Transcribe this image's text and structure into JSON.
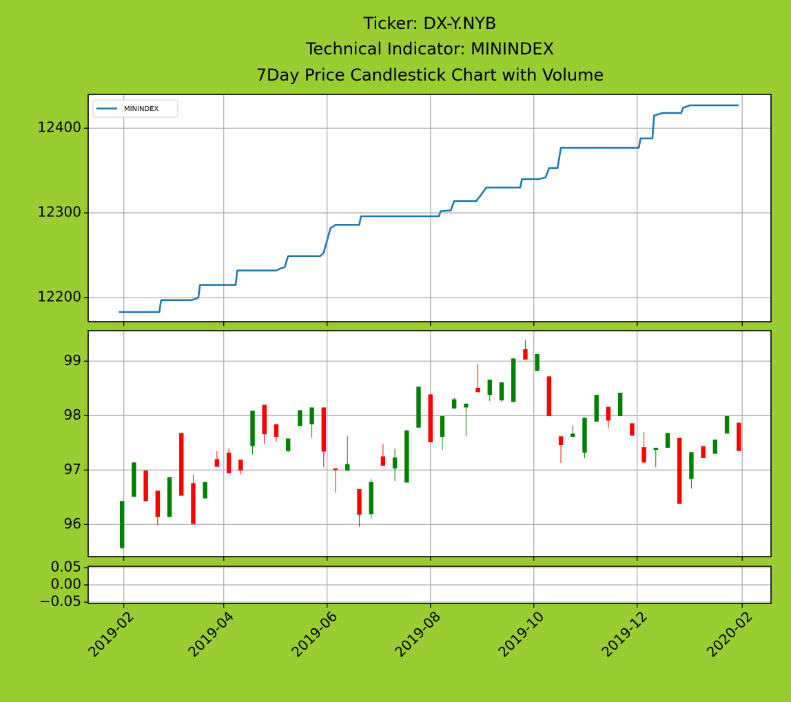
{
  "chart_data": [
    {
      "type": "line",
      "title": [
        "Ticker: DX-Y.NYB",
        "Technical Indicator: MININDEX",
        "7Day Price Candlestick Chart with Volume"
      ],
      "x": [
        "2019-01-29",
        "2019-02-22",
        "2019-02-23",
        "2019-03-13",
        "2019-03-16",
        "2019-03-17",
        "2019-03-18",
        "2019-04-08",
        "2019-04-09",
        "2019-05-02",
        "2019-05-04",
        "2019-05-07",
        "2019-05-09",
        "2019-05-28",
        "2019-05-30",
        "2019-06-03",
        "2019-06-06",
        "2019-06-20",
        "2019-06-21",
        "2019-08-06",
        "2019-08-07",
        "2019-08-13",
        "2019-08-15",
        "2019-08-28",
        "2019-08-30",
        "2019-09-03",
        "2019-09-23",
        "2019-09-24",
        "2019-10-04",
        "2019-10-08",
        "2019-10-10",
        "2019-10-15",
        "2019-10-17",
        "2019-12-02",
        "2019-12-03",
        "2019-12-10",
        "2019-12-11",
        "2019-12-16",
        "2019-12-27",
        "2019-12-28",
        "2020-01-01",
        "2020-01-30"
      ],
      "series": [
        {
          "name": "MININDEX",
          "color": "#1f77b4",
          "values": [
            12183,
            12183,
            12197,
            12197,
            12199,
            12200,
            12215,
            12215,
            12232,
            12232,
            12234,
            12236,
            12249,
            12249,
            12253,
            12282,
            12286,
            12286,
            12296,
            12296,
            12302,
            12303,
            12314,
            12314,
            12319,
            12330,
            12330,
            12340,
            12340,
            12342,
            12353,
            12353,
            12377,
            12377,
            12388,
            12388,
            12415,
            12418,
            12418,
            12424,
            12427,
            12427
          ]
        }
      ],
      "legend": "upper left",
      "xlim": [
        "2019-01-11",
        "2020-02-18"
      ],
      "xticks": [
        "2019-02",
        "2019-04",
        "2019-06",
        "2019-08",
        "2019-10",
        "2019-12",
        "2020-02"
      ],
      "ylim": [
        12171.5,
        12440
      ],
      "yticks": [
        12200,
        12300,
        12400
      ],
      "grid": true
    },
    {
      "type": "candlestick",
      "x": [
        "2019-01-31",
        "2019-02-07",
        "2019-02-14",
        "2019-02-21",
        "2019-02-28",
        "2019-03-07",
        "2019-03-14",
        "2019-03-21",
        "2019-03-28",
        "2019-04-04",
        "2019-04-11",
        "2019-04-18",
        "2019-04-25",
        "2019-05-02",
        "2019-05-09",
        "2019-05-16",
        "2019-05-23",
        "2019-05-30",
        "2019-06-06",
        "2019-06-13",
        "2019-06-20",
        "2019-06-27",
        "2019-07-04",
        "2019-07-11",
        "2019-07-18",
        "2019-07-25",
        "2019-08-01",
        "2019-08-08",
        "2019-08-15",
        "2019-08-22",
        "2019-08-29",
        "2019-09-05",
        "2019-09-12",
        "2019-09-19",
        "2019-09-26",
        "2019-10-03",
        "2019-10-10",
        "2019-10-17",
        "2019-10-24",
        "2019-10-31",
        "2019-11-07",
        "2019-11-14",
        "2019-11-21",
        "2019-11-28",
        "2019-12-05",
        "2019-12-12",
        "2019-12-19",
        "2019-12-26",
        "2020-01-02",
        "2020-01-09",
        "2020-01-16",
        "2020-01-23",
        "2020-01-30"
      ],
      "open": [
        95.57,
        96.51,
        96.99,
        96.62,
        96.14,
        97.68,
        96.76,
        96.48,
        97.2,
        97.32,
        97.19,
        97.44,
        98.2,
        97.84,
        97.35,
        97.81,
        97.84,
        98.15,
        97.03,
        96.99,
        96.65,
        96.19,
        97.25,
        97.03,
        96.77,
        97.78,
        98.39,
        97.61,
        98.13,
        98.15,
        98.51,
        98.38,
        98.28,
        98.25,
        99.22,
        98.82,
        98.72,
        97.62,
        97.61,
        97.32,
        97.89,
        98.16,
        97.99,
        97.86,
        97.42,
        97.37,
        97.41,
        97.59,
        96.84,
        97.44,
        97.3,
        97.67,
        97.87
      ],
      "high": [
        96.43,
        97.14,
        97.0,
        96.62,
        96.87,
        97.68,
        96.91,
        96.78,
        97.35,
        97.4,
        97.19,
        98.09,
        98.2,
        97.84,
        97.58,
        98.1,
        98.15,
        98.15,
        97.03,
        97.63,
        96.65,
        96.84,
        97.48,
        97.39,
        97.73,
        98.53,
        98.39,
        97.99,
        98.33,
        98.22,
        98.95,
        98.66,
        98.61,
        99.05,
        99.38,
        99.13,
        98.72,
        97.62,
        97.82,
        97.96,
        98.38,
        98.16,
        98.42,
        97.86,
        97.7,
        97.41,
        97.68,
        97.59,
        97.33,
        97.44,
        97.56,
        97.99,
        97.87
      ],
      "low": [
        95.55,
        96.51,
        96.43,
        95.99,
        96.14,
        96.53,
        96.01,
        96.48,
        97.06,
        96.94,
        96.92,
        97.29,
        97.48,
        97.52,
        97.33,
        97.81,
        97.59,
        97.05,
        96.59,
        96.99,
        95.96,
        96.11,
        97.08,
        96.8,
        96.77,
        97.78,
        97.51,
        97.37,
        98.13,
        97.62,
        98.43,
        98.27,
        98.25,
        98.25,
        99.03,
        98.82,
        97.99,
        97.13,
        97.61,
        97.22,
        97.89,
        97.76,
        97.99,
        97.63,
        97.14,
        97.05,
        97.41,
        96.38,
        96.66,
        97.22,
        97.3,
        97.67,
        97.35
      ],
      "close": [
        96.43,
        97.14,
        96.43,
        96.14,
        96.87,
        96.53,
        96.01,
        96.78,
        97.06,
        96.94,
        96.99,
        98.09,
        97.66,
        97.61,
        97.58,
        98.1,
        98.15,
        97.34,
        97.0,
        97.11,
        96.18,
        96.78,
        97.08,
        97.23,
        97.73,
        98.53,
        97.51,
        97.99,
        98.3,
        98.22,
        98.43,
        98.66,
        98.61,
        99.05,
        99.03,
        99.13,
        97.99,
        97.46,
        97.67,
        97.96,
        98.38,
        97.91,
        98.42,
        97.63,
        97.14,
        97.41,
        97.68,
        96.38,
        97.33,
        97.22,
        97.56,
        97.99,
        97.35
      ],
      "up_color": "#008000",
      "down_color": "#ff0000",
      "xlim": [
        "2019-01-11",
        "2020-02-18"
      ],
      "xticks": [
        "2019-02",
        "2019-04",
        "2019-06",
        "2019-08",
        "2019-10",
        "2019-12",
        "2020-02"
      ],
      "ylim": [
        95.41,
        99.56
      ],
      "yticks": [
        96,
        97,
        98,
        99
      ],
      "grid": true
    },
    {
      "type": "bar",
      "xlim": [
        "2019-01-11",
        "2020-02-18"
      ],
      "xticks": [
        "2019-02",
        "2019-04",
        "2019-06",
        "2019-08",
        "2019-10",
        "2019-12",
        "2020-02"
      ],
      "ylim": [
        -0.054,
        0.054
      ],
      "yticks": [
        0.05,
        {
          "value": 0,
          "label": "0.00"
        },
        {
          "value": -0.05,
          "label": "−0.05"
        }
      ],
      "grid": true
    }
  ]
}
